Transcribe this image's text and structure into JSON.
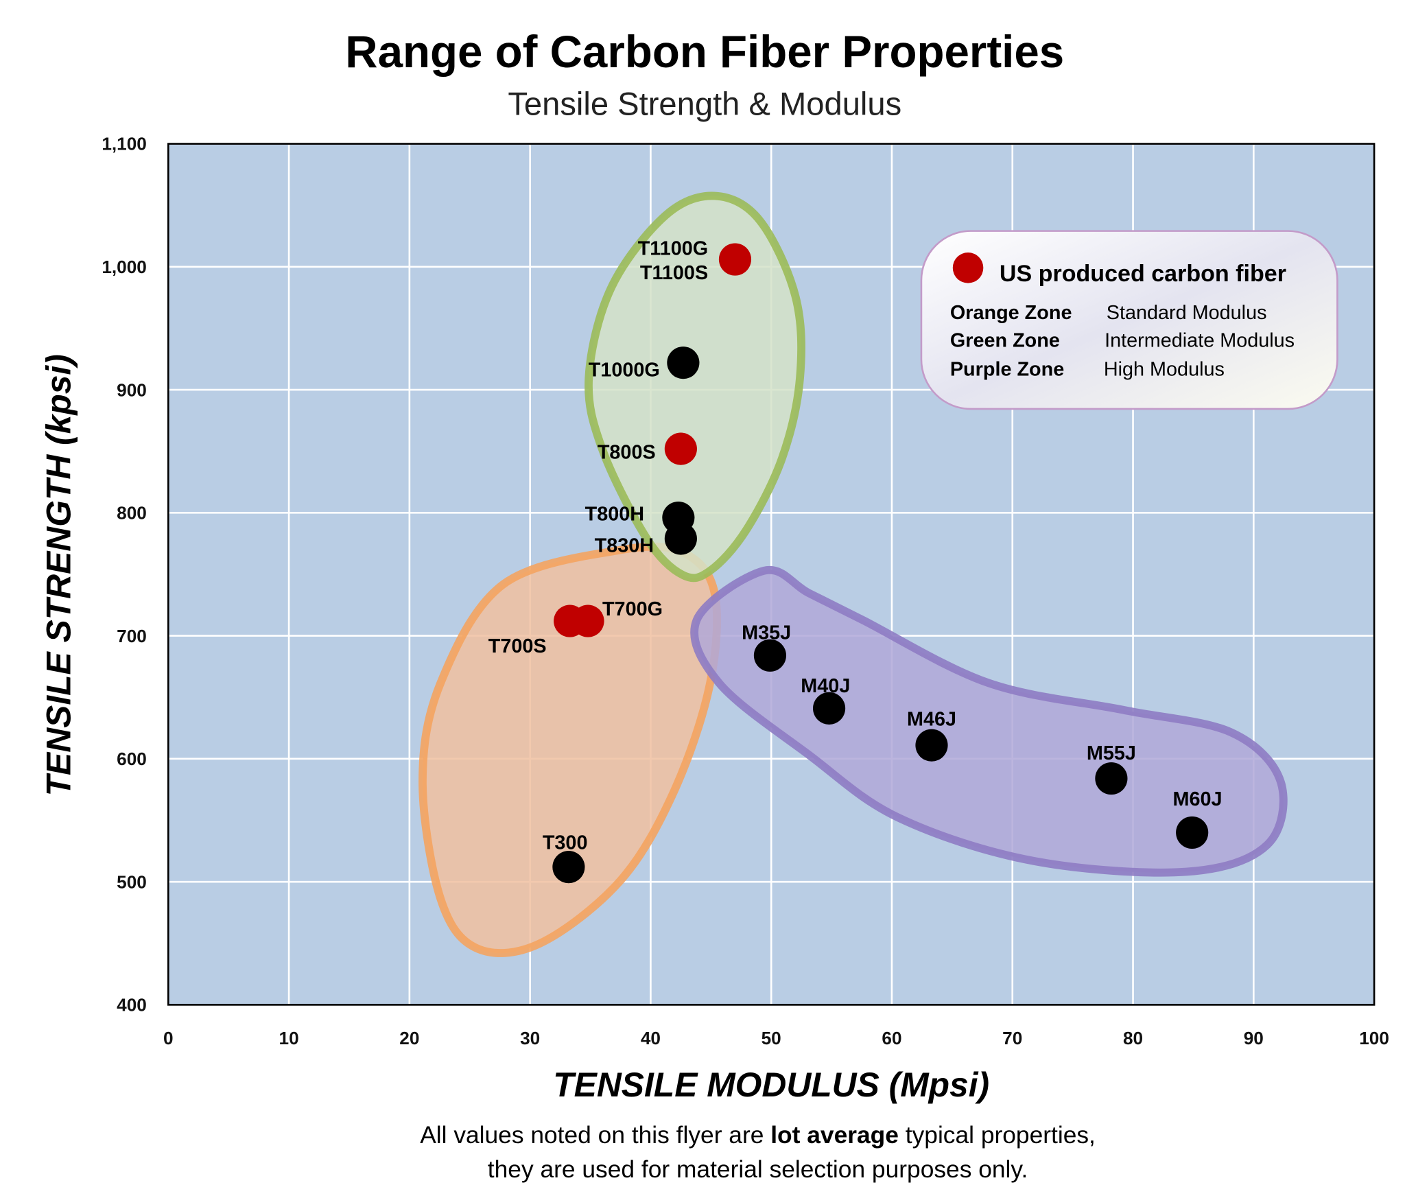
{
  "chart_data": {
    "type": "scatter",
    "title": "Range of Carbon Fiber Properties",
    "subtitle": "Tensile Strength & Modulus",
    "xlabel": "TENSILE MODULUS (Mpsi)",
    "ylabel": "TENSILE STRENGTH (kpsi)",
    "xlim": [
      0,
      100
    ],
    "ylim": [
      400,
      1100
    ],
    "xticks": [
      "0",
      "10",
      "20",
      "30",
      "40",
      "50",
      "60",
      "70",
      "80",
      "90",
      "100"
    ],
    "yticks": [
      "400",
      "500",
      "600",
      "700",
      "800",
      "900",
      "1,000",
      "1,100"
    ],
    "grid": true,
    "background_color": "#b9cde4",
    "points": [
      {
        "label": "T1100G\nT1100S",
        "x": 47.0,
        "y": 1006,
        "us_produced": true
      },
      {
        "label": "T1000G",
        "x": 42.7,
        "y": 922,
        "us_produced": false
      },
      {
        "label": "T800S",
        "x": 42.5,
        "y": 852,
        "us_produced": true
      },
      {
        "label": "T800H",
        "x": 42.3,
        "y": 796,
        "us_produced": false
      },
      {
        "label": "T830H",
        "x": 42.5,
        "y": 779,
        "us_produced": false
      },
      {
        "label": "T700S",
        "x": 33.3,
        "y": 712,
        "us_produced": true
      },
      {
        "label": "T700G",
        "x": 34.8,
        "y": 712,
        "us_produced": true
      },
      {
        "label": "T300",
        "x": 33.2,
        "y": 512,
        "us_produced": false
      },
      {
        "label": "M35J",
        "x": 49.9,
        "y": 684,
        "us_produced": false
      },
      {
        "label": "M40J",
        "x": 54.8,
        "y": 641,
        "us_produced": false
      },
      {
        "label": "M46J",
        "x": 63.3,
        "y": 611,
        "us_produced": false
      },
      {
        "label": "M55J",
        "x": 78.2,
        "y": 584,
        "us_produced": false
      },
      {
        "label": "M60J",
        "x": 84.9,
        "y": 540,
        "us_produced": false
      }
    ],
    "colors": {
      "us_produced": "#c00000",
      "other": "#000000",
      "orange_zone": "#f4a460",
      "green_zone": "#9bbb59",
      "purple_zone": "#8e7cc3"
    },
    "legend": {
      "placement": "top-right",
      "marker_label": "US produced carbon fiber",
      "zones": [
        {
          "zone": "Orange Zone",
          "meaning": "Standard Modulus"
        },
        {
          "zone": "Green Zone",
          "meaning": "Intermediate Modulus"
        },
        {
          "zone": "Purple Zone",
          "meaning": "High Modulus"
        }
      ]
    }
  },
  "footer": {
    "line1_pre": "All values noted on this flyer are ",
    "line1_bold": "lot average",
    "line1_post": " typical properties,",
    "line2": "they are used for material selection purposes only."
  }
}
